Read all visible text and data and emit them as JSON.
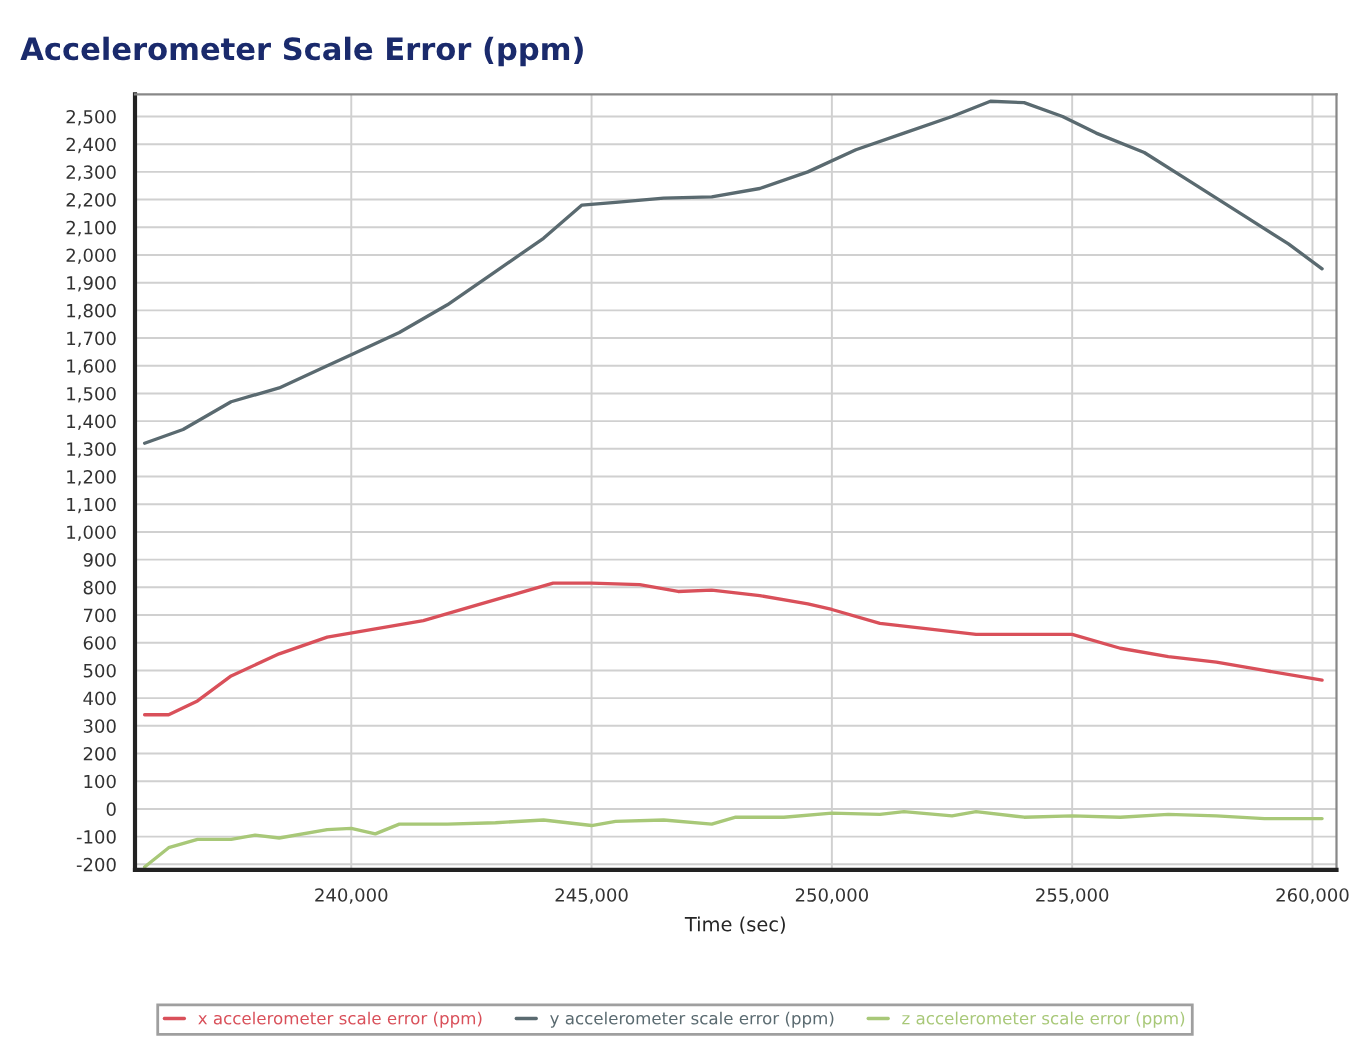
{
  "chart_data": {
    "type": "line",
    "title": "Accelerometer Scale Error (ppm)",
    "xlabel": "Time (sec)",
    "xlim": [
      235500,
      260500
    ],
    "xticks": [
      {
        "value": 240000,
        "label": "240,000"
      },
      {
        "value": 245000,
        "label": "245,000"
      },
      {
        "value": 250000,
        "label": "250,000"
      },
      {
        "value": 255000,
        "label": "255,000"
      },
      {
        "value": 260000,
        "label": "260,000"
      }
    ],
    "ylim": [
      -220,
      2580
    ],
    "yticks": [
      {
        "value": -200,
        "label": "-200"
      },
      {
        "value": -100,
        "label": "-100"
      },
      0,
      100,
      200,
      300,
      400,
      500,
      600,
      700,
      800,
      900,
      {
        "value": 1000,
        "label": "1,000"
      },
      {
        "value": 1100,
        "label": "1,100"
      },
      {
        "value": 1200,
        "label": "1,200"
      },
      {
        "value": 1300,
        "label": "1,300"
      },
      {
        "value": 1400,
        "label": "1,400"
      },
      {
        "value": 1500,
        "label": "1,500"
      },
      {
        "value": 1600,
        "label": "1,600"
      },
      {
        "value": 1700,
        "label": "1,700"
      },
      {
        "value": 1800,
        "label": "1,800"
      },
      {
        "value": 1900,
        "label": "1,900"
      },
      {
        "value": 2000,
        "label": "2,000"
      },
      {
        "value": 2100,
        "label": "2,100"
      },
      {
        "value": 2200,
        "label": "2,200"
      },
      {
        "value": 2300,
        "label": "2,300"
      },
      {
        "value": 2400,
        "label": "2,400"
      },
      {
        "value": 2500,
        "label": "2,500"
      }
    ],
    "grid": true,
    "legend": "bottom",
    "series": [
      {
        "name": "x accelerometer scale error (ppm)",
        "color": "#d9505a",
        "x": [
          235700,
          236200,
          236800,
          237500,
          238500,
          239500,
          240500,
          241500,
          242500,
          243500,
          244200,
          245000,
          246000,
          246800,
          247500,
          248500,
          249500,
          250000,
          251000,
          252000,
          253000,
          254000,
          255000,
          256000,
          257000,
          258000,
          259000,
          260200
        ],
        "values": [
          340,
          340,
          390,
          480,
          560,
          620,
          650,
          680,
          730,
          780,
          815,
          815,
          810,
          785,
          790,
          770,
          740,
          720,
          670,
          650,
          630,
          630,
          630,
          580,
          550,
          530,
          500,
          465
        ]
      },
      {
        "name": "y accelerometer scale error (ppm)",
        "color": "#5a6a70",
        "x": [
          235700,
          236500,
          237500,
          238500,
          239500,
          240000,
          241000,
          242000,
          243000,
          244000,
          244800,
          245500,
          246500,
          247500,
          248500,
          249500,
          250500,
          251500,
          252500,
          253300,
          254000,
          254800,
          255500,
          256500,
          257500,
          258500,
          259500,
          260200
        ],
        "values": [
          1320,
          1370,
          1470,
          1520,
          1600,
          1640,
          1720,
          1820,
          1940,
          2060,
          2180,
          2190,
          2205,
          2210,
          2240,
          2300,
          2380,
          2440,
          2500,
          2555,
          2550,
          2500,
          2440,
          2370,
          2260,
          2150,
          2040,
          1950
        ]
      },
      {
        "name": "z accelerometer scale error (ppm)",
        "color": "#a8c878",
        "x": [
          235700,
          236200,
          236800,
          237500,
          238000,
          238500,
          239500,
          240000,
          240500,
          241000,
          242000,
          243000,
          244000,
          245000,
          245500,
          246500,
          247500,
          248000,
          249000,
          250000,
          251000,
          251500,
          252500,
          253000,
          254000,
          255000,
          256000,
          257000,
          258000,
          259000,
          260200
        ],
        "values": [
          -210,
          -140,
          -110,
          -110,
          -95,
          -105,
          -75,
          -70,
          -90,
          -55,
          -55,
          -50,
          -40,
          -60,
          -45,
          -40,
          -55,
          -30,
          -30,
          -15,
          -20,
          -10,
          -25,
          -10,
          -30,
          -25,
          -30,
          -20,
          -25,
          -35,
          -35
        ]
      }
    ]
  }
}
